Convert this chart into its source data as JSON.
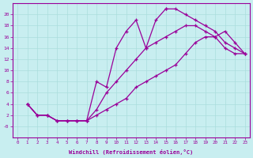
{
  "xlabel": "Windchill (Refroidissement éolien,°C)",
  "bg_color": "#c8eef0",
  "line_color": "#990099",
  "grid_color": "#aadddd",
  "curve1_x": [
    1,
    2,
    3,
    4,
    5,
    6,
    7,
    8,
    9,
    10,
    11,
    12,
    13,
    14,
    15,
    15,
    16,
    17,
    18,
    19,
    20,
    21,
    22,
    23
  ],
  "curve1_y": [
    4,
    2,
    2,
    1,
    1,
    1,
    1,
    8,
    7,
    14,
    17,
    19,
    14,
    19,
    21,
    21,
    21,
    20,
    19,
    18,
    17,
    15,
    14,
    13
  ],
  "curve2_x": [
    1,
    2,
    3,
    4,
    5,
    6,
    7,
    8,
    9,
    10,
    11,
    12,
    13,
    14,
    15,
    16,
    17,
    18,
    19,
    20,
    21,
    22,
    23
  ],
  "curve2_y": [
    4,
    2,
    2,
    1,
    1,
    1,
    1,
    3,
    6,
    8,
    10,
    12,
    14,
    15,
    16,
    17,
    18,
    18,
    17,
    16,
    17,
    15,
    13
  ],
  "curve3_x": [
    1,
    2,
    3,
    4,
    5,
    6,
    7,
    8,
    9,
    10,
    11,
    12,
    13,
    14,
    15,
    16,
    17,
    18,
    19,
    20,
    21,
    22,
    23
  ],
  "curve3_y": [
    4,
    2,
    2,
    1,
    1,
    1,
    1,
    2,
    3,
    4,
    5,
    7,
    8,
    9,
    10,
    11,
    13,
    15,
    16,
    16,
    14,
    13,
    13
  ],
  "ylim": [
    -2,
    22
  ],
  "xlim": [
    -0.5,
    23.5
  ],
  "yticks": [
    0,
    2,
    4,
    6,
    8,
    10,
    12,
    14,
    16,
    18,
    20
  ],
  "ytick_labels": [
    "-0",
    "2",
    "4",
    "6",
    "8",
    "10",
    "12",
    "14",
    "16",
    "18",
    "20"
  ],
  "xticks": [
    0,
    1,
    2,
    3,
    4,
    5,
    6,
    7,
    8,
    9,
    10,
    11,
    12,
    13,
    14,
    15,
    16,
    17,
    18,
    19,
    20,
    21,
    22,
    23
  ]
}
